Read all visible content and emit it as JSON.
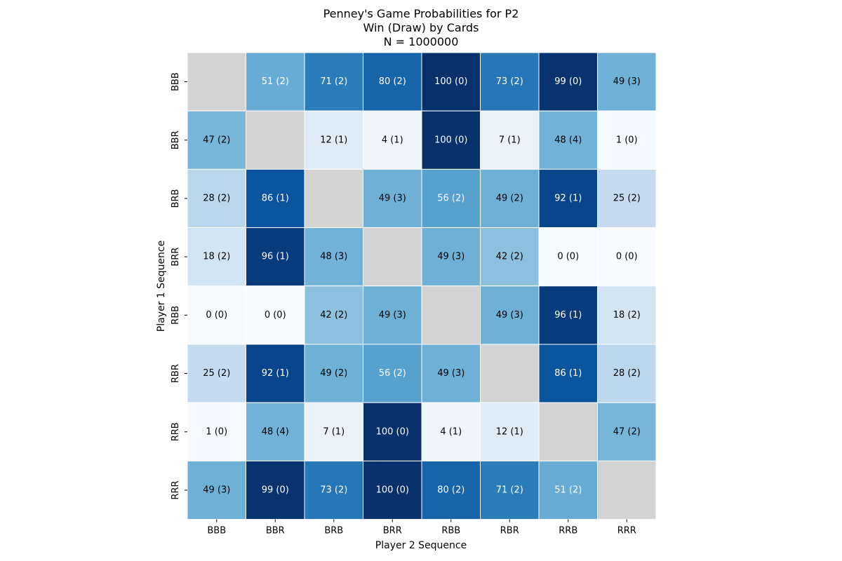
{
  "chart_data": {
    "type": "heatmap",
    "title_lines": [
      "Penney's Game Probabilities for P2",
      "Win (Draw) by Cards",
      "N = 1000000"
    ],
    "xlabel": "Player 2 Sequence",
    "ylabel": "Player 1 Sequence",
    "x_categories": [
      "BBB",
      "BBR",
      "BRB",
      "BRR",
      "RBB",
      "RBR",
      "RRB",
      "RRR"
    ],
    "y_categories": [
      "BBB",
      "BBR",
      "BRB",
      "BRR",
      "RBB",
      "RBR",
      "RRB",
      "RRR"
    ],
    "win": [
      [
        null,
        51,
        71,
        80,
        100,
        73,
        99,
        49
      ],
      [
        47,
        null,
        12,
        4,
        100,
        7,
        48,
        1
      ],
      [
        28,
        86,
        null,
        49,
        56,
        49,
        92,
        25
      ],
      [
        18,
        96,
        48,
        null,
        49,
        42,
        0,
        0
      ],
      [
        0,
        0,
        42,
        49,
        null,
        49,
        96,
        18
      ],
      [
        25,
        92,
        49,
        56,
        49,
        null,
        86,
        28
      ],
      [
        1,
        48,
        7,
        100,
        4,
        12,
        null,
        47
      ],
      [
        49,
        99,
        73,
        100,
        80,
        71,
        51,
        null
      ]
    ],
    "draw": [
      [
        null,
        2,
        2,
        2,
        0,
        2,
        0,
        3
      ],
      [
        2,
        null,
        1,
        1,
        0,
        1,
        4,
        0
      ],
      [
        2,
        1,
        null,
        3,
        2,
        2,
        1,
        2
      ],
      [
        2,
        1,
        3,
        null,
        3,
        2,
        0,
        0
      ],
      [
        0,
        0,
        2,
        3,
        null,
        3,
        1,
        2
      ],
      [
        2,
        1,
        2,
        2,
        3,
        null,
        1,
        2
      ],
      [
        0,
        4,
        1,
        0,
        1,
        1,
        null,
        2
      ],
      [
        3,
        0,
        2,
        0,
        2,
        2,
        2,
        null
      ]
    ],
    "value_range": [
      0,
      100
    ],
    "colormap": "Blues",
    "colorbar": false,
    "missing_color": "#d3d3d3",
    "grid_line_color": "#ffffff",
    "text_color_light": "#ffffff",
    "text_color_dark": "#000000"
  }
}
